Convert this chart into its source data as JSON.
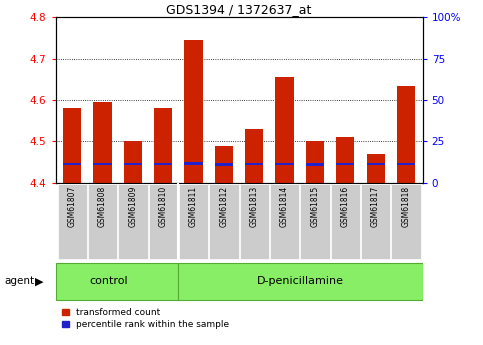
{
  "title": "GDS1394 / 1372637_at",
  "samples": [
    "GSM61807",
    "GSM61808",
    "GSM61809",
    "GSM61810",
    "GSM61811",
    "GSM61812",
    "GSM61813",
    "GSM61814",
    "GSM61815",
    "GSM61816",
    "GSM61817",
    "GSM61818"
  ],
  "red_values": [
    4.58,
    4.595,
    4.5,
    4.58,
    4.745,
    4.49,
    4.53,
    4.655,
    4.5,
    4.51,
    4.47,
    4.635
  ],
  "blue_values": [
    4.445,
    4.445,
    4.445,
    4.445,
    4.447,
    4.444,
    4.445,
    4.446,
    4.444,
    4.445,
    4.445,
    4.446
  ],
  "ymin": 4.4,
  "ymax": 4.8,
  "yticks": [
    4.4,
    4.5,
    4.6,
    4.7,
    4.8
  ],
  "right_yticks": [
    0,
    25,
    50,
    75,
    100
  ],
  "n_control": 4,
  "n_treatment": 8,
  "control_label": "control",
  "treatment_label": "D-penicillamine",
  "agent_label": "agent",
  "bar_color_red": "#CC2200",
  "bar_color_blue": "#2222CC",
  "green_color": "#88EE66",
  "gray_color": "#CCCCCC",
  "bar_width": 0.6,
  "legend_red": "transformed count",
  "legend_blue": "percentile rank within the sample",
  "grid_ticks": [
    4.5,
    4.6,
    4.7
  ]
}
